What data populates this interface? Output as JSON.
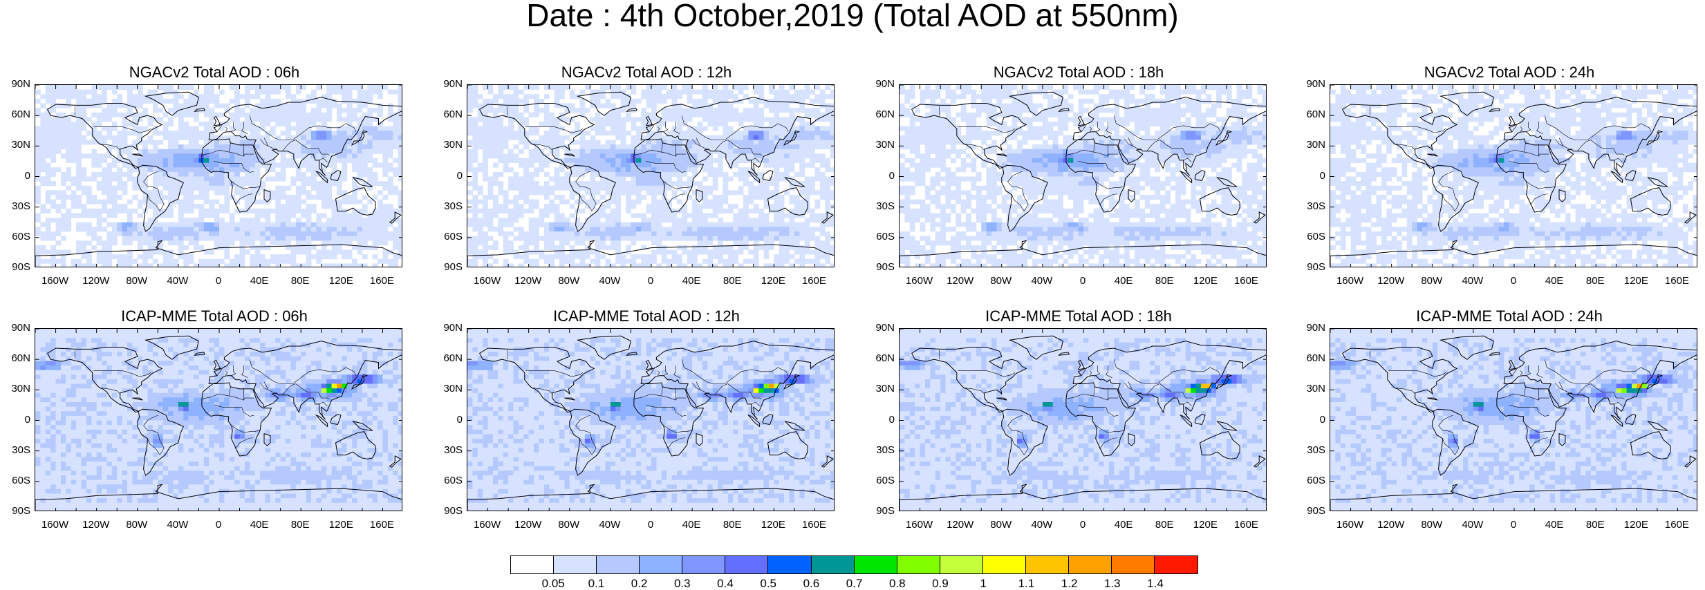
{
  "title": "Date : 4th October,2019 (Total AOD at 550nm)",
  "lat_ticks": [
    "90N",
    "60N",
    "30N",
    "0",
    "30S",
    "60S",
    "90S"
  ],
  "lon_ticks": [
    "160W",
    "120W",
    "80W",
    "40W",
    "0",
    "40E",
    "80E",
    "120E",
    "160E"
  ],
  "panels": [
    {
      "title": "NGACv2 Total AOD : 06h",
      "model": "NGACv2",
      "hour": 6
    },
    {
      "title": "NGACv2 Total AOD : 12h",
      "model": "NGACv2",
      "hour": 12
    },
    {
      "title": "NGACv2 Total AOD : 18h",
      "model": "NGACv2",
      "hour": 18
    },
    {
      "title": "NGACv2 Total AOD : 24h",
      "model": "NGACv2",
      "hour": 24
    },
    {
      "title": "ICAP-MME Total AOD : 06h",
      "model": "ICAP-MME",
      "hour": 6
    },
    {
      "title": "ICAP-MME Total AOD : 12h",
      "model": "ICAP-MME",
      "hour": 12
    },
    {
      "title": "ICAP-MME Total AOD : 18h",
      "model": "ICAP-MME",
      "hour": 18
    },
    {
      "title": "ICAP-MME Total AOD : 24h",
      "model": "ICAP-MME",
      "hour": 24
    }
  ],
  "colorbar": {
    "labels": [
      "0.05",
      "0.1",
      "0.2",
      "0.3",
      "0.4",
      "0.5",
      "0.6",
      "0.7",
      "0.8",
      "0.9",
      "1",
      "1.1",
      "1.2",
      "1.3",
      "1.4"
    ],
    "colors": [
      "#ffffff",
      "#d6e2ff",
      "#b5c9ff",
      "#8eb2ff",
      "#7f96ff",
      "#6370ff",
      "#0063ff",
      "#009696",
      "#00e600",
      "#7fff00",
      "#c5ff3b",
      "#ffff00",
      "#ffc400",
      "#ffa100",
      "#ff7b00",
      "#ff1900"
    ]
  },
  "map_colors": {
    "coast": "#000000",
    "border": "#000000"
  }
}
